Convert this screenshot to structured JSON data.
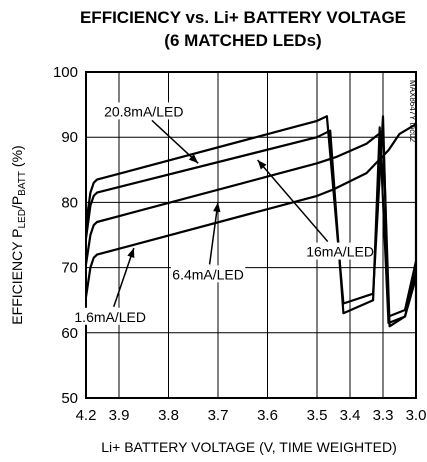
{
  "chart_data": {
    "type": "line",
    "title": "EFFICIENCY vs. Li+ BATTERY VOLTAGE",
    "subtitle": "(6 MATCHED LEDs)",
    "xlabel": "Li+ BATTERY VOLTAGE (V, TIME WEIGHTED)",
    "ylabel_parts": [
      "EFFICIENCY P",
      "LED",
      "/P",
      "BATT",
      " (%)"
    ],
    "figure_id": "MAX8647Y toc02",
    "ylim": [
      50,
      100
    ],
    "grid": true,
    "x_ticks": [
      {
        "label": "4.2",
        "t": 0.0
      },
      {
        "label": "3.9",
        "t": 0.1
      },
      {
        "label": "3.8",
        "t": 0.25
      },
      {
        "label": "3.7",
        "t": 0.4
      },
      {
        "label": "3.6",
        "t": 0.55
      },
      {
        "label": "3.5",
        "t": 0.7
      },
      {
        "label": "3.4",
        "t": 0.8
      },
      {
        "label": "3.3",
        "t": 0.9
      },
      {
        "label": "3.0",
        "t": 1.0
      }
    ],
    "y_ticks": [
      50,
      60,
      70,
      80,
      90,
      100
    ],
    "series": [
      {
        "name": "20.8mA/LED",
        "points": [
          [
            4.2,
            76.5
          ],
          [
            4.16,
            81.5
          ],
          [
            4.13,
            83.0
          ],
          [
            4.1,
            83.5
          ],
          [
            3.5,
            92.5
          ],
          [
            3.47,
            93.2
          ],
          [
            3.42,
            64.5
          ],
          [
            3.33,
            66.0
          ],
          [
            3.3,
            93.2
          ],
          [
            3.25,
            62.5
          ],
          [
            3.1,
            63.5
          ],
          [
            3.0,
            71.0
          ]
        ]
      },
      {
        "name": "16mA/LED",
        "points": [
          [
            4.2,
            74.5
          ],
          [
            4.16,
            79.5
          ],
          [
            4.13,
            81.0
          ],
          [
            4.1,
            81.5
          ],
          [
            3.5,
            90.0
          ],
          [
            3.46,
            91.0
          ],
          [
            3.42,
            63.0
          ],
          [
            3.33,
            65.0
          ],
          [
            3.31,
            91.5
          ],
          [
            3.25,
            61.5
          ],
          [
            3.1,
            62.5
          ],
          [
            3.0,
            69.5
          ]
        ]
      },
      {
        "name": "6.4mA/LED",
        "points": [
          [
            4.2,
            70.5
          ],
          [
            4.16,
            75.0
          ],
          [
            4.13,
            76.5
          ],
          [
            4.1,
            77.0
          ],
          [
            3.5,
            86.0
          ],
          [
            3.44,
            87.0
          ],
          [
            3.35,
            89.0
          ],
          [
            3.3,
            91.0
          ],
          [
            3.24,
            61.0
          ],
          [
            3.1,
            62.5
          ],
          [
            3.0,
            68.5
          ]
        ]
      },
      {
        "name": "1.6mA/LED",
        "points": [
          [
            4.2,
            65.5
          ],
          [
            4.16,
            70.0
          ],
          [
            4.13,
            71.5
          ],
          [
            4.1,
            72.0
          ],
          [
            3.5,
            81.0
          ],
          [
            3.45,
            82.0
          ],
          [
            3.35,
            84.5
          ],
          [
            3.25,
            88.0
          ],
          [
            3.15,
            90.5
          ],
          [
            3.0,
            92.0
          ],
          [
            3.0,
            63.5
          ]
        ]
      }
    ],
    "annotations": [
      {
        "text": "20.8mA/LED",
        "x": 3.85,
        "y": 93.5,
        "target_x": 3.74,
        "target_y": 86.0
      },
      {
        "text": "16mA/LED",
        "x": 3.43,
        "y": 72.0,
        "target_x": 3.62,
        "target_y": 86.5
      },
      {
        "text": "6.4mA/LED",
        "x": 3.72,
        "y": 68.5,
        "target_x": 3.7,
        "target_y": 80.0
      },
      {
        "text": "1.6mA/LED",
        "x": 3.98,
        "y": 62.0,
        "target_x": 3.87,
        "target_y": 73.0
      }
    ]
  }
}
